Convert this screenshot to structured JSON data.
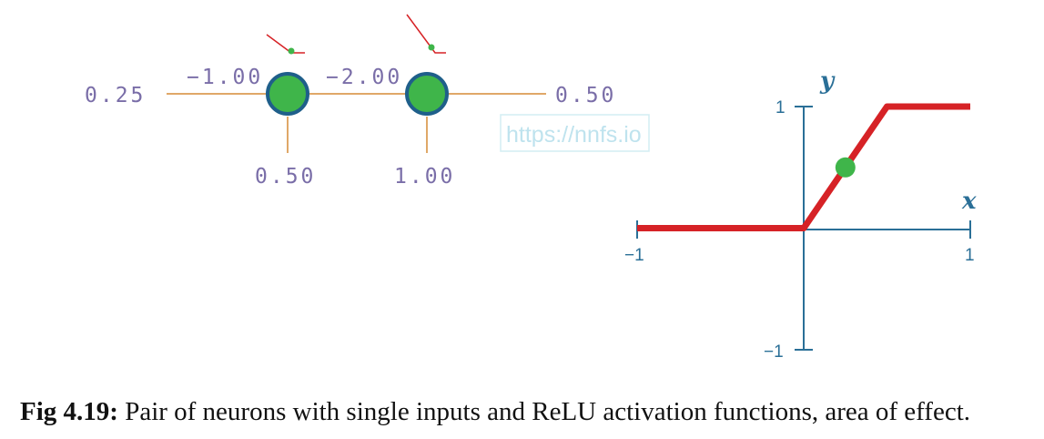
{
  "network": {
    "input_value": "0.25",
    "weight_1": "−1.00",
    "weight_2": "−2.00",
    "bias_1": "0.50",
    "bias_2": "1.00",
    "output_value": "0.50"
  },
  "plot": {
    "x_label": "x",
    "y_label": "y",
    "x_tick_min": "−1",
    "x_tick_max": "1",
    "y_tick_max": "1",
    "y_tick_min": "−1",
    "watermark": "https://nnfs.io"
  },
  "chart_data": {
    "type": "line",
    "xlim": [
      -1,
      1
    ],
    "ylim": [
      -1,
      1
    ],
    "series": [
      {
        "x": [
          -1,
          0,
          0.5,
          1
        ],
        "y": [
          0,
          0,
          1,
          1
        ]
      }
    ],
    "highlight_point": {
      "x": 0.25,
      "y": 0.5
    }
  },
  "caption": {
    "label": "Fig 4.19:",
    "text": " Pair of neurons with single inputs and ReLU activation functions, area of effect."
  },
  "colors": {
    "line": "#d62226",
    "neuron": "#3fb54a",
    "neuron_border": "#1f5f8a",
    "axis": "#2a6f97",
    "connection": "#e0a868",
    "mini_relu": "#d62226"
  }
}
